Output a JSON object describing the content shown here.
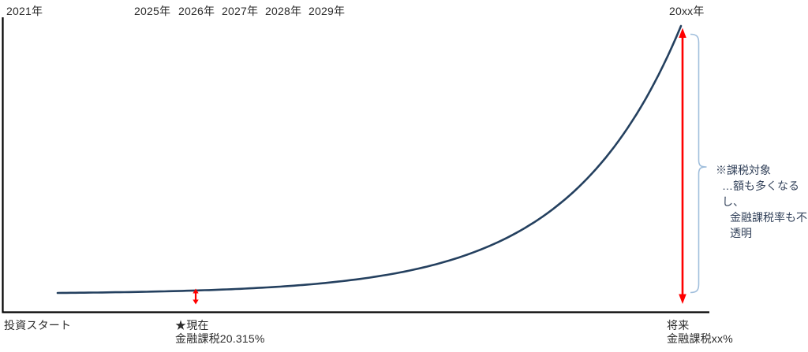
{
  "colors": {
    "curve": "#24405f",
    "arrow": "#ff0000",
    "brace": "#a0bedc",
    "axis": "#000000",
    "text": "#2b2b2b"
  },
  "chart_data": {
    "type": "line",
    "title": "",
    "grid": false,
    "legend": false,
    "top_axis_year_ticks": [
      "2021年",
      "2025年",
      "2026年",
      "2027年",
      "2028年",
      "2029年",
      "20xx年"
    ],
    "bottom_axis_labels": {
      "start": "投資スタート",
      "current": "★現在",
      "current_sub": "金融課税20.315%",
      "future": "将来",
      "future_sub": "金融課税xx%"
    },
    "side_annotation": [
      "※課税対象",
      "…額も多くなるし、",
      "金融課税率も不透明"
    ],
    "series": [
      {
        "name": "asset-growth-curve",
        "shape": "exponential",
        "exp_k": 5.6,
        "x_start_label": "2021年",
        "x_end_label": "20xx年",
        "normalized_values_t0_to_t1": [
          0,
          0.003,
          0.009,
          0.019,
          0.035,
          0.064,
          0.113,
          0.196,
          0.339,
          0.583,
          1.0
        ]
      }
    ],
    "markers": [
      {
        "name": "current-taxable-gap",
        "kind": "small-red-double-arrow"
      },
      {
        "name": "future-taxable-gap",
        "kind": "large-red-double-arrow"
      },
      {
        "name": "taxable-range-brace",
        "kind": "right-curly-brace"
      }
    ]
  }
}
